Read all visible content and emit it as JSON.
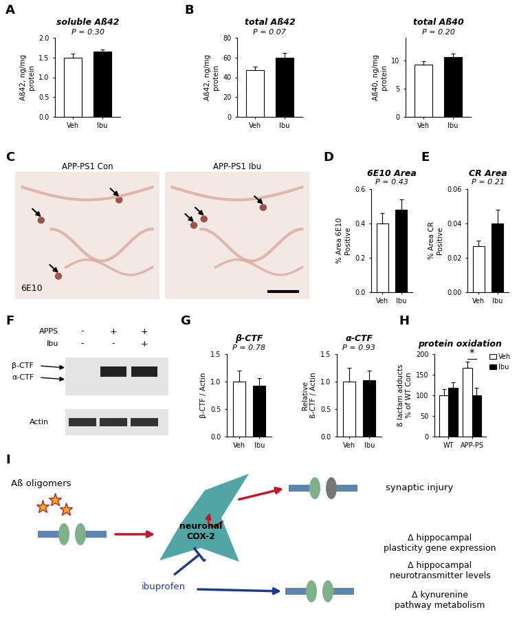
{
  "chart_data": [
    {
      "panel": "A",
      "type": "bar",
      "title": "soluble Aß42",
      "annotations": [
        "P = 0.30"
      ],
      "y_label": "Aß42, ng/mg\nprotein",
      "categories": [
        "Veh",
        "Ibu"
      ],
      "values": [
        1.5,
        1.65
      ],
      "errors": [
        0.1,
        0.05
      ],
      "colors": [
        "#ffffff",
        "#000000"
      ],
      "ylim": [
        0,
        2.0
      ],
      "yticks": [
        {
          "value": 0,
          "label": "0.0"
        },
        {
          "value": 0.5,
          "label": "0.5"
        },
        {
          "value": 1.0,
          "label": "1.0"
        },
        {
          "value": 1.5,
          "label": "1.5"
        },
        {
          "value": 2.0,
          "label": "2.0"
        }
      ]
    },
    {
      "panel": "B",
      "type": "bar",
      "title": "total Aß42",
      "annotations": [
        "P = 0.07"
      ],
      "y_label": "Aß42, ng/mg\nprotein",
      "categories": [
        "Veh",
        "Ibu"
      ],
      "values": [
        47,
        60
      ],
      "errors": [
        4,
        5
      ],
      "colors": [
        "#ffffff",
        "#000000"
      ],
      "ylim": [
        0,
        80
      ],
      "yticks": [
        0,
        20,
        40,
        60,
        80
      ]
    },
    {
      "type": "bar",
      "title": "total Aß40",
      "annotations": [
        "P = 0.20"
      ],
      "y_label": "Aß40, ng/mg\nprotein",
      "categories": [
        "Veh",
        "Ibu"
      ],
      "values": [
        9.2,
        10.6
      ],
      "errors": [
        0.7,
        0.6
      ],
      "colors": [
        "#ffffff",
        "#000000"
      ],
      "ylim": [
        0,
        14
      ],
      "yticks": [
        0,
        5,
        10
      ]
    },
    {
      "panel": "D",
      "type": "bar",
      "title": "6E10 Area",
      "annotations": [
        "P = 0.43"
      ],
      "y_label": "% Area 6E10\nPositive",
      "categories": [
        "Veh",
        "Ibu"
      ],
      "values": [
        0.4,
        0.48
      ],
      "errors": [
        0.06,
        0.06
      ],
      "colors": [
        "#ffffff",
        "#000000"
      ],
      "ylim": [
        0,
        0.6
      ],
      "yticks": [
        {
          "value": 0,
          "label": "0.0"
        },
        {
          "value": 0.2,
          "label": "0.2"
        },
        {
          "value": 0.4,
          "label": "0.4"
        },
        {
          "value": 0.6,
          "label": "0.6"
        }
      ]
    },
    {
      "panel": "E",
      "type": "bar",
      "title": "CR Area",
      "annotations": [
        "P = 0.21"
      ],
      "y_label": "% Area CR\nPositive",
      "categories": [
        "Veh",
        "Ibu"
      ],
      "values": [
        0.027,
        0.04
      ],
      "errors": [
        0.003,
        0.008
      ],
      "colors": [
        "#ffffff",
        "#000000"
      ],
      "ylim": [
        0,
        0.06
      ],
      "yticks": [
        {
          "value": 0,
          "label": "0.00"
        },
        {
          "value": 0.02,
          "label": "0.02"
        },
        {
          "value": 0.04,
          "label": "0.04"
        },
        {
          "value": 0.06,
          "label": "0.06"
        }
      ]
    },
    {
      "panel": "G",
      "type": "bar",
      "title": "β-CTF",
      "annotations": [
        "P = 0.78"
      ],
      "y_label": "β-CTF / Actin",
      "categories": [
        "Veh",
        "Ibu"
      ],
      "values": [
        1.0,
        0.93
      ],
      "errors": [
        0.2,
        0.13
      ],
      "colors": [
        "#ffffff",
        "#000000"
      ],
      "ylim": [
        0,
        1.5
      ],
      "yticks": [
        {
          "value": 0,
          "label": "0.0"
        },
        {
          "value": 0.5,
          "label": "0.5"
        },
        {
          "value": 1.0,
          "label": "1.0"
        },
        {
          "value": 1.5,
          "label": "1.5"
        }
      ]
    },
    {
      "type": "bar",
      "title": "α-CTF",
      "annotations": [
        "P = 0.93"
      ],
      "y_label": "Relative\nß-CTF / Actin",
      "categories": [
        "Veh",
        "Ibu"
      ],
      "values": [
        1.0,
        1.03
      ],
      "errors": [
        0.25,
        0.17
      ],
      "colors": [
        "#ffffff",
        "#000000"
      ],
      "ylim": [
        0,
        1.5
      ],
      "yticks": [
        {
          "value": 0,
          "label": "0.0"
        },
        {
          "value": 0.5,
          "label": "0.5"
        },
        {
          "value": 1.0,
          "label": "1.0"
        },
        {
          "value": 1.5,
          "label": "1.5"
        }
      ]
    },
    {
      "panel": "H",
      "type": "bar",
      "title": "protein oxidation",
      "annotations": [
        {
          "text": "*",
          "category": "APP-PS"
        }
      ],
      "y_label": "ß lactam adducts\n% of WT Con",
      "categories": [
        "WT",
        "APP-PS"
      ],
      "series": [
        {
          "name": "Veh",
          "color": "#ffffff",
          "values": [
            100,
            167
          ],
          "errors": [
            15,
            15
          ]
        },
        {
          "name": "Ibu",
          "color": "#000000",
          "values": [
            118,
            100
          ],
          "errors": [
            13,
            18
          ]
        }
      ],
      "ylim": [
        0,
        200
      ],
      "yticks": [
        0,
        50,
        100,
        150,
        200
      ],
      "legend": "right"
    }
  ],
  "images": {
    "panel": "C",
    "titles": [
      "APP-PS1 Con",
      "APP-PS1 Ibu"
    ],
    "stain": "6E10"
  },
  "blot": {
    "panel": "F",
    "conditions": [
      {
        "label": "APPS",
        "values": [
          "-",
          "+",
          "+"
        ]
      },
      {
        "label": "Ibu",
        "values": [
          "-",
          "-",
          "+"
        ]
      }
    ],
    "bands": [
      "β-CTF",
      "α-CTF"
    ],
    "loading": "Actin"
  },
  "diagram": {
    "panel": "I",
    "stimulus": "Aß oligomers",
    "center": "neuronal\nCOX-2",
    "outcome": "synaptic injury",
    "drug": "ibuprofen",
    "effects": [
      "Δ hippocampal\nplasticity gene expression",
      "Δ hippocampal\nneurotransmitter levels",
      "Δ kynurenine\npathway metabolism"
    ]
  }
}
